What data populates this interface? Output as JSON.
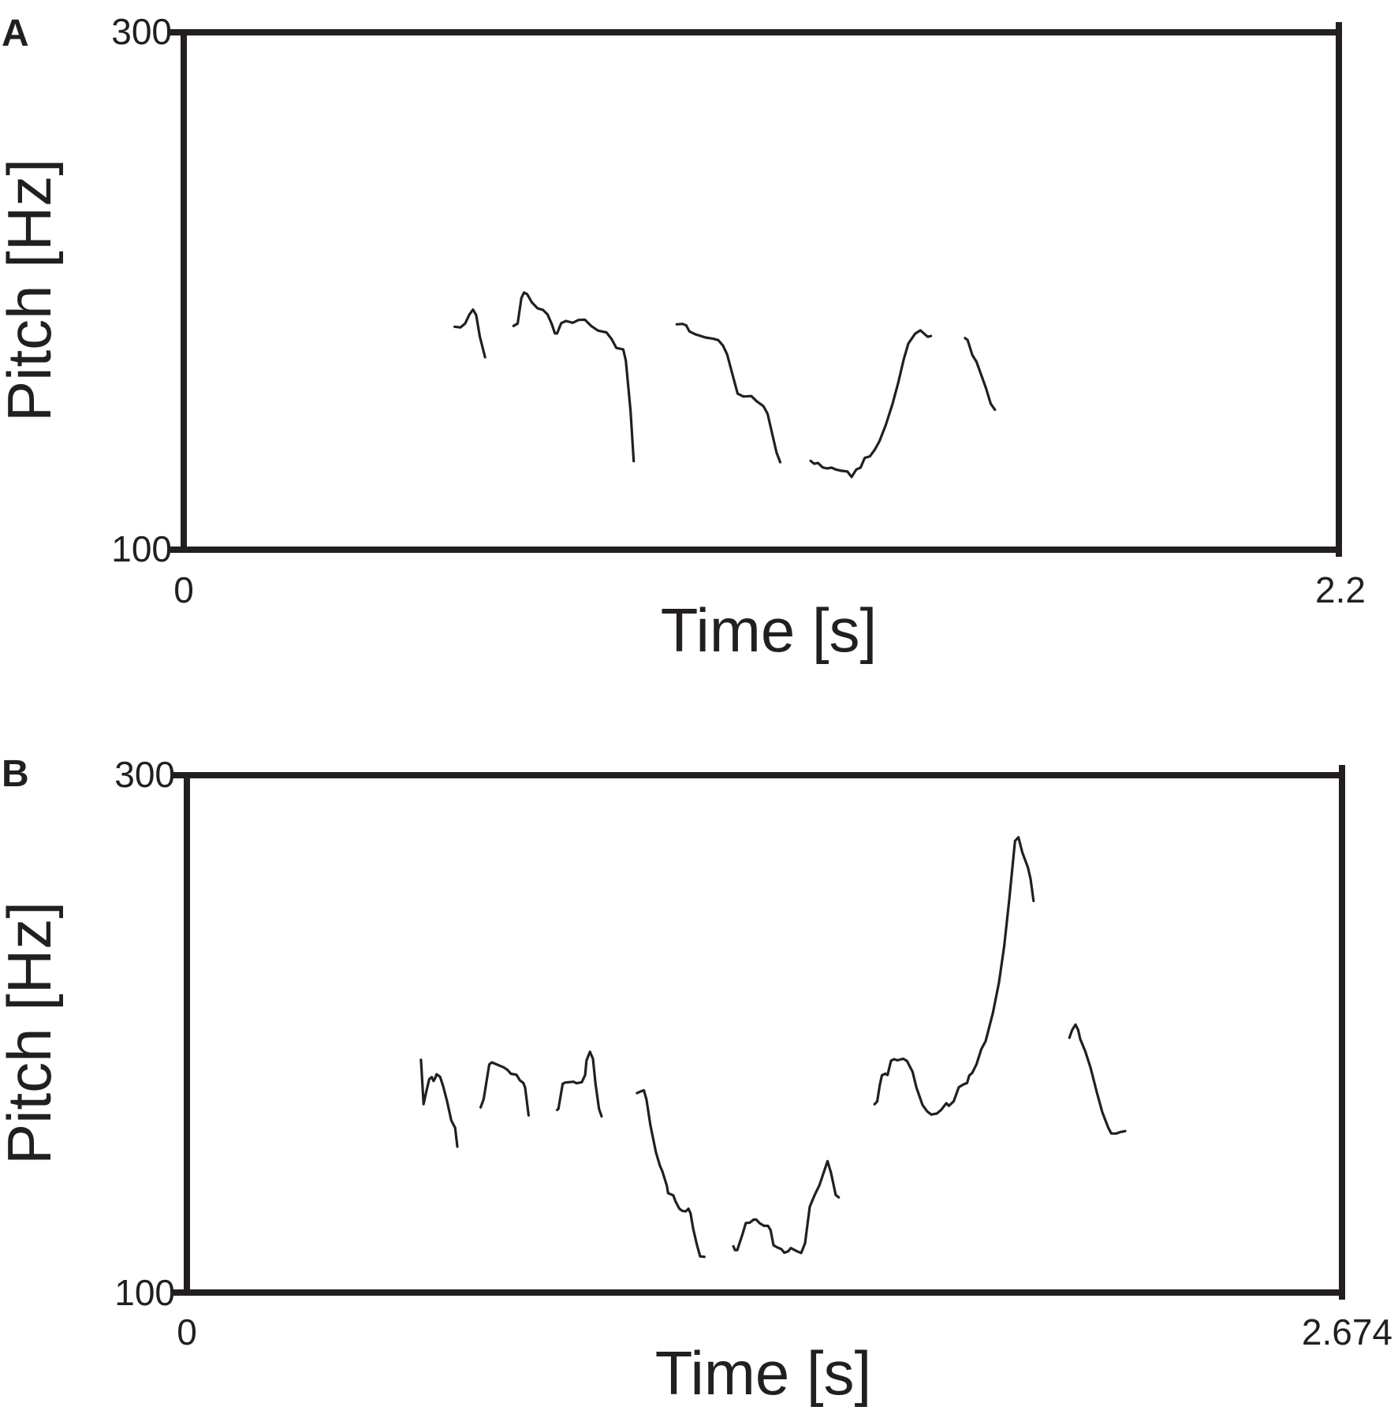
{
  "chart_data": [
    {
      "type": "line",
      "panel_label": "A",
      "xlabel": "Time [s]",
      "ylabel": "Pitch [Hz]",
      "xlim": [
        0,
        2.2
      ],
      "ylim": [
        100,
        300
      ],
      "x_ticks": [
        "0",
        "2.2"
      ],
      "y_ticks": [
        "100",
        "300"
      ],
      "grid": false,
      "color": "#231f20",
      "segments": [
        [
          [
            0.516,
            186.2
          ],
          [
            0.527,
            185.9
          ],
          [
            0.536,
            187.4
          ],
          [
            0.544,
            190.9
          ],
          [
            0.551,
            192.8
          ],
          [
            0.557,
            190.7
          ],
          [
            0.564,
            182.3
          ],
          [
            0.574,
            174.4
          ]
        ],
        [
          [
            0.628,
            186.5
          ],
          [
            0.636,
            187.4
          ],
          [
            0.643,
            197.2
          ],
          [
            0.648,
            199.4
          ],
          [
            0.654,
            198.8
          ],
          [
            0.663,
            195.6
          ],
          [
            0.674,
            193.3
          ],
          [
            0.684,
            192.7
          ],
          [
            0.693,
            190.9
          ],
          [
            0.701,
            187.2
          ],
          [
            0.707,
            183.6
          ],
          [
            0.711,
            183.6
          ],
          [
            0.719,
            187.6
          ],
          [
            0.728,
            188.4
          ],
          [
            0.741,
            187.7
          ],
          [
            0.752,
            188.8
          ],
          [
            0.764,
            188.9
          ],
          [
            0.776,
            186.5
          ],
          [
            0.789,
            184.7
          ],
          [
            0.805,
            184.0
          ],
          [
            0.815,
            181.4
          ],
          [
            0.824,
            178.0
          ],
          [
            0.837,
            177.4
          ],
          [
            0.842,
            173.1
          ],
          [
            0.851,
            153.6
          ],
          [
            0.857,
            134.2
          ]
        ],
        [
          [
            0.939,
            187.1
          ],
          [
            0.95,
            187.3
          ],
          [
            0.957,
            186.7
          ],
          [
            0.963,
            184.4
          ],
          [
            0.974,
            183.3
          ],
          [
            0.994,
            182.0
          ],
          [
            1.008,
            181.6
          ],
          [
            1.018,
            181.0
          ],
          [
            1.027,
            178.9
          ],
          [
            1.035,
            175.5
          ],
          [
            1.046,
            167.1
          ],
          [
            1.055,
            160.3
          ],
          [
            1.066,
            159.2
          ],
          [
            1.081,
            159.4
          ],
          [
            1.091,
            157.4
          ],
          [
            1.104,
            155.5
          ],
          [
            1.112,
            152.5
          ],
          [
            1.129,
            137.6
          ],
          [
            1.136,
            133.8
          ]
        ],
        [
          [
            1.194,
            134.3
          ],
          [
            1.201,
            133.2
          ],
          [
            1.208,
            133.5
          ],
          [
            1.217,
            131.8
          ],
          [
            1.225,
            131.4
          ],
          [
            1.234,
            131.7
          ],
          [
            1.243,
            130.9
          ],
          [
            1.253,
            130.5
          ],
          [
            1.264,
            130.2
          ],
          [
            1.272,
            128.1
          ],
          [
            1.281,
            131.0
          ],
          [
            1.289,
            131.7
          ],
          [
            1.297,
            135.5
          ],
          [
            1.307,
            136.1
          ],
          [
            1.316,
            138.6
          ],
          [
            1.325,
            141.9
          ],
          [
            1.337,
            148.1
          ],
          [
            1.35,
            156.4
          ],
          [
            1.361,
            164.7
          ],
          [
            1.371,
            173.4
          ],
          [
            1.38,
            179.7
          ],
          [
            1.393,
            183.5
          ],
          [
            1.403,
            184.8
          ],
          [
            1.417,
            182.3
          ],
          [
            1.423,
            182.6
          ]
        ],
        [
          [
            1.488,
            181.8
          ],
          [
            1.493,
            181.0
          ],
          [
            1.502,
            175.2
          ],
          [
            1.51,
            172.6
          ],
          [
            1.528,
            162.4
          ],
          [
            1.537,
            156.4
          ],
          [
            1.545,
            154.1
          ]
        ]
      ]
    },
    {
      "type": "line",
      "panel_label": "B",
      "xlabel": "Time [s]",
      "ylabel": "Pitch [Hz]",
      "xlim": [
        0,
        2.674
      ],
      "ylim": [
        100,
        300
      ],
      "x_ticks": [
        "0",
        "2.674"
      ],
      "y_ticks": [
        "100",
        "300"
      ],
      "grid": false,
      "color": "#231f20",
      "segments": [
        [
          [
            0.542,
            190.0
          ],
          [
            0.548,
            172.8
          ],
          [
            0.554,
            177.5
          ],
          [
            0.561,
            182.5
          ],
          [
            0.567,
            183.3
          ],
          [
            0.571,
            181.8
          ],
          [
            0.574,
            182.6
          ],
          [
            0.578,
            184.4
          ],
          [
            0.586,
            183.4
          ],
          [
            0.593,
            179.9
          ],
          [
            0.602,
            174.2
          ],
          [
            0.612,
            166.6
          ],
          [
            0.621,
            163.7
          ],
          [
            0.626,
            156.4
          ]
        ],
        [
          [
            0.68,
            171.6
          ],
          [
            0.687,
            174.8
          ],
          [
            0.7,
            188.2
          ],
          [
            0.706,
            189.0
          ],
          [
            0.72,
            188.0
          ],
          [
            0.733,
            187.1
          ],
          [
            0.742,
            186.1
          ],
          [
            0.75,
            184.6
          ],
          [
            0.763,
            184.2
          ],
          [
            0.771,
            182.0
          ],
          [
            0.779,
            181.0
          ],
          [
            0.783,
            179.2
          ],
          [
            0.791,
            168.5
          ]
        ],
        [
          [
            0.857,
            170.6
          ],
          [
            0.86,
            171.0
          ],
          [
            0.87,
            180.7
          ],
          [
            0.876,
            181.2
          ],
          [
            0.895,
            181.5
          ],
          [
            0.902,
            180.9
          ],
          [
            0.914,
            181.3
          ],
          [
            0.922,
            184.1
          ],
          [
            0.925,
            189.7
          ],
          [
            0.933,
            193.1
          ],
          [
            0.94,
            190.4
          ],
          [
            0.946,
            180.6
          ],
          [
            0.954,
            171.0
          ],
          [
            0.96,
            168.1
          ]
        ],
        [
          [
            1.042,
            177.1
          ],
          [
            1.05,
            177.7
          ],
          [
            1.058,
            178.2
          ],
          [
            1.064,
            174.6
          ],
          [
            1.073,
            164.6
          ],
          [
            1.086,
            154.1
          ],
          [
            1.095,
            149.1
          ],
          [
            1.101,
            146.7
          ],
          [
            1.111,
            141.3
          ],
          [
            1.114,
            138.4
          ],
          [
            1.126,
            137.6
          ],
          [
            1.131,
            135.3
          ],
          [
            1.14,
            132.4
          ],
          [
            1.147,
            131.6
          ],
          [
            1.155,
            131.4
          ],
          [
            1.161,
            132.4
          ],
          [
            1.166,
            130.6
          ],
          [
            1.172,
            124.7
          ],
          [
            1.18,
            118.9
          ],
          [
            1.188,
            114.0
          ],
          [
            1.198,
            113.8
          ]
        ],
        [
          [
            1.265,
            117.9
          ],
          [
            1.269,
            116.4
          ],
          [
            1.274,
            116.4
          ],
          [
            1.286,
            122.5
          ],
          [
            1.294,
            126.9
          ],
          [
            1.303,
            127.0
          ],
          [
            1.312,
            128.2
          ],
          [
            1.318,
            128.2
          ],
          [
            1.326,
            126.8
          ],
          [
            1.336,
            125.8
          ],
          [
            1.345,
            125.8
          ],
          [
            1.351,
            124.2
          ],
          [
            1.358,
            118.3
          ],
          [
            1.366,
            117.5
          ],
          [
            1.376,
            116.8
          ],
          [
            1.383,
            115.4
          ],
          [
            1.392,
            115.9
          ],
          [
            1.398,
            117.2
          ],
          [
            1.413,
            115.9
          ],
          [
            1.422,
            115.3
          ],
          [
            1.431,
            119.1
          ],
          [
            1.442,
            133.2
          ],
          [
            1.454,
            138.0
          ],
          [
            1.464,
            141.4
          ],
          [
            1.483,
            150.8
          ],
          [
            1.491,
            146.3
          ],
          [
            1.502,
            137.7
          ],
          [
            1.509,
            136.8
          ]
        ],
        [
          [
            1.592,
            172.8
          ],
          [
            1.598,
            173.9
          ],
          [
            1.604,
            180.2
          ],
          [
            1.609,
            184.0
          ],
          [
            1.617,
            184.6
          ],
          [
            1.622,
            184.1
          ],
          [
            1.63,
            189.6
          ],
          [
            1.637,
            190.2
          ],
          [
            1.645,
            189.8
          ],
          [
            1.658,
            190.4
          ],
          [
            1.667,
            189.5
          ],
          [
            1.68,
            185.3
          ],
          [
            1.689,
            179.2
          ],
          [
            1.703,
            172.5
          ],
          [
            1.714,
            170.0
          ],
          [
            1.723,
            168.8
          ],
          [
            1.736,
            169.2
          ],
          [
            1.746,
            170.6
          ],
          [
            1.758,
            173.2
          ],
          [
            1.764,
            172.2
          ],
          [
            1.775,
            173.9
          ],
          [
            1.787,
            179.4
          ],
          [
            1.798,
            180.5
          ],
          [
            1.806,
            181.0
          ],
          [
            1.811,
            183.9
          ],
          [
            1.818,
            184.9
          ],
          [
            1.828,
            188.3
          ],
          [
            1.839,
            194.1
          ],
          [
            1.849,
            197.2
          ],
          [
            1.866,
            208.2
          ],
          [
            1.88,
            220.0
          ],
          [
            1.892,
            234.0
          ],
          [
            1.904,
            252.3
          ],
          [
            1.917,
            274.6
          ],
          [
            1.925,
            276.0
          ],
          [
            1.934,
            270.1
          ],
          [
            1.947,
            264.3
          ],
          [
            1.953,
            259.9
          ],
          [
            1.96,
            251.4
          ]
        ],
        [
          [
            2.043,
            198.5
          ],
          [
            2.049,
            201.4
          ],
          [
            2.057,
            203.6
          ],
          [
            2.063,
            201.6
          ],
          [
            2.068,
            198.0
          ],
          [
            2.08,
            193.1
          ],
          [
            2.092,
            186.9
          ],
          [
            2.106,
            177.7
          ],
          [
            2.119,
            169.8
          ],
          [
            2.133,
            163.7
          ],
          [
            2.14,
            161.5
          ],
          [
            2.152,
            161.5
          ],
          [
            2.16,
            162.0
          ],
          [
            2.172,
            162.4
          ]
        ]
      ]
    }
  ]
}
